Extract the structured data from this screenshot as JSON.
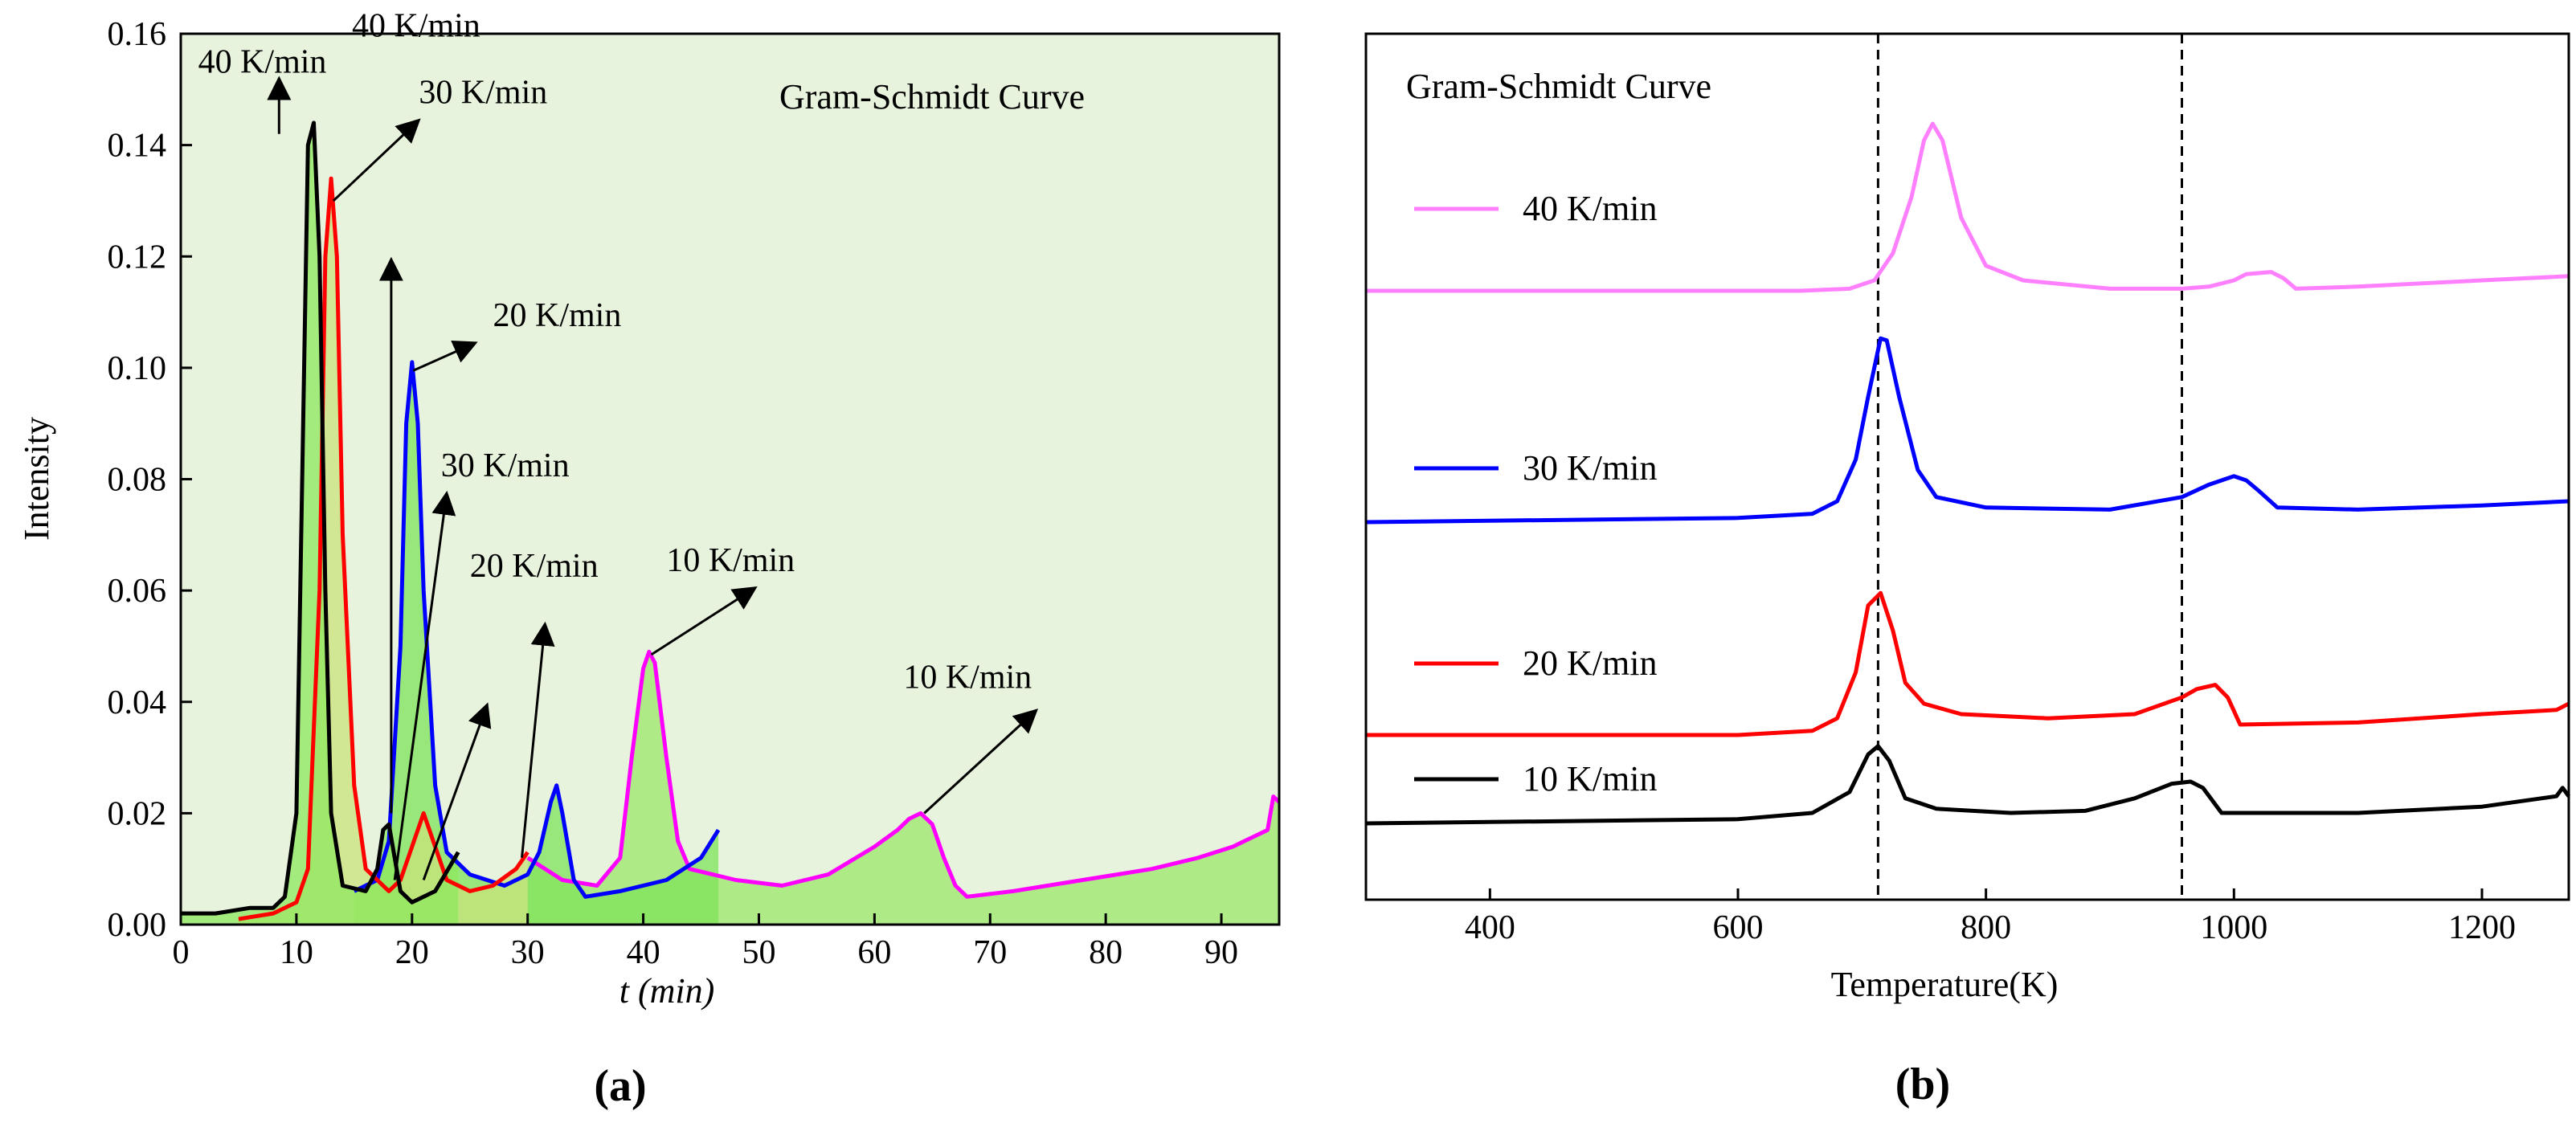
{
  "panel_a": {
    "caption": "(a)",
    "chart_data": {
      "type": "line",
      "title": "Gram-Schmidt Curve",
      "xlabel": "t (min)",
      "ylabel": "Intensity",
      "xlim": [
        0,
        95
      ],
      "ylim": [
        0,
        0.16
      ],
      "xticks": [
        0,
        10,
        20,
        30,
        40,
        50,
        60,
        70,
        80,
        90
      ],
      "yticks": [
        "0.00",
        "0.02",
        "0.04",
        "0.06",
        "0.08",
        "0.10",
        "0.12",
        "0.14",
        "0.16"
      ],
      "grid": false,
      "background": "#e8f3de",
      "series": [
        {
          "name": "10 K/min",
          "color": "#ff00ff",
          "x": [
            30,
            33,
            36,
            38,
            39,
            40,
            40.5,
            41,
            42,
            43,
            44,
            46,
            48,
            52,
            56,
            60,
            62,
            63,
            64,
            65,
            66,
            67,
            68,
            72,
            78,
            84,
            88,
            91,
            93,
            94,
            94.5,
            95
          ],
          "y": [
            0.012,
            0.008,
            0.007,
            0.012,
            0.03,
            0.046,
            0.049,
            0.047,
            0.03,
            0.015,
            0.01,
            0.009,
            0.008,
            0.007,
            0.009,
            0.014,
            0.017,
            0.019,
            0.02,
            0.018,
            0.012,
            0.007,
            0.005,
            0.006,
            0.008,
            0.01,
            0.012,
            0.014,
            0.016,
            0.017,
            0.023,
            0.022
          ]
        },
        {
          "name": "20 K/min",
          "color": "#0000ff",
          "x": [
            15,
            17,
            18,
            19,
            19.5,
            20,
            20.5,
            21,
            22,
            23,
            25,
            28,
            30,
            31,
            32,
            32.5,
            33,
            34,
            35,
            38,
            42,
            45,
            46.5
          ],
          "y": [
            0.006,
            0.008,
            0.015,
            0.05,
            0.09,
            0.101,
            0.09,
            0.06,
            0.025,
            0.013,
            0.009,
            0.007,
            0.009,
            0.013,
            0.022,
            0.025,
            0.02,
            0.008,
            0.005,
            0.006,
            0.008,
            0.012,
            0.017
          ]
        },
        {
          "name": "30 K/min",
          "color": "#ff0000",
          "x": [
            5,
            8,
            10,
            11,
            12,
            12.5,
            13,
            13.5,
            14,
            15,
            16,
            18,
            19,
            20,
            21,
            22,
            23,
            25,
            27,
            29,
            30
          ],
          "y": [
            0.001,
            0.002,
            0.004,
            0.01,
            0.06,
            0.12,
            0.134,
            0.12,
            0.07,
            0.025,
            0.01,
            0.006,
            0.008,
            0.014,
            0.02,
            0.014,
            0.008,
            0.006,
            0.007,
            0.01,
            0.013
          ]
        },
        {
          "name": "40 K/min",
          "color": "#000000",
          "x": [
            0,
            3,
            6,
            8,
            9,
            10,
            10.5,
            11,
            11.5,
            12,
            12.5,
            13,
            14,
            16,
            17,
            17.5,
            18,
            18.5,
            19,
            20,
            22,
            24
          ],
          "y": [
            0.002,
            0.002,
            0.003,
            0.003,
            0.005,
            0.02,
            0.08,
            0.14,
            0.144,
            0.12,
            0.06,
            0.02,
            0.007,
            0.006,
            0.01,
            0.017,
            0.018,
            0.012,
            0.006,
            0.004,
            0.006,
            0.013
          ]
        }
      ],
      "annotations": [
        {
          "text": "40 K/min",
          "x": 1.5,
          "y": 0.153
        },
        {
          "text": "30 K/min",
          "x": 20.6,
          "y": 0.1475
        },
        {
          "text": "40 K/min",
          "x": 14.8,
          "y": 0.1595
        },
        {
          "text": "20 K/min",
          "x": 27,
          "y": 0.1075
        },
        {
          "text": "30 K/min",
          "x": 22.5,
          "y": 0.0805
        },
        {
          "text": "20 K/min",
          "x": 25,
          "y": 0.0625
        },
        {
          "text": "10 K/min",
          "x": 42,
          "y": 0.0635
        },
        {
          "text": "10 K/min",
          "x": 62.5,
          "y": 0.0425
        }
      ]
    }
  },
  "panel_b": {
    "caption": "(b)",
    "chart_data": {
      "type": "line",
      "title": "Gram-Schmidt Curve",
      "xlabel": "Temperature(K)",
      "ylabel": "",
      "xlim": [
        300,
        1270
      ],
      "xticks": [
        400,
        600,
        800,
        1000,
        1200
      ],
      "grid": false,
      "reference_lines_x": [
        713,
        958
      ],
      "series": [
        {
          "name": "40 K/min",
          "color": "#ff80ff",
          "offset": 3.0,
          "x": [
            300,
            650,
            690,
            710,
            725,
            740,
            750,
            757,
            765,
            780,
            800,
            830,
            900,
            958,
            980,
            1000,
            1010,
            1030,
            1040,
            1050,
            1100,
            1200,
            1270
          ],
          "y": [
            0.0,
            0.0,
            0.01,
            0.05,
            0.18,
            0.45,
            0.72,
            0.8,
            0.72,
            0.35,
            0.12,
            0.05,
            0.01,
            0.01,
            0.02,
            0.05,
            0.08,
            0.09,
            0.06,
            0.01,
            0.02,
            0.05,
            0.07
          ]
        },
        {
          "name": "30 K/min",
          "color": "#0000ff",
          "offset": 2.0,
          "x": [
            300,
            600,
            660,
            680,
            695,
            705,
            715,
            720,
            730,
            745,
            760,
            800,
            900,
            958,
            980,
            1000,
            1010,
            1020,
            1035,
            1100,
            1200,
            1270
          ],
          "y": [
            0.0,
            0.02,
            0.04,
            0.1,
            0.3,
            0.6,
            0.88,
            0.87,
            0.6,
            0.25,
            0.12,
            0.07,
            0.06,
            0.12,
            0.18,
            0.22,
            0.2,
            0.15,
            0.07,
            0.06,
            0.08,
            0.1
          ]
        },
        {
          "name": "20 K/min",
          "color": "#ff0000",
          "offset": 1.0,
          "x": [
            300,
            600,
            660,
            680,
            695,
            705,
            715,
            725,
            735,
            750,
            780,
            850,
            920,
            958,
            970,
            985,
            995,
            1005,
            1100,
            1200,
            1260,
            1270
          ],
          "y": [
            0.0,
            0.0,
            0.02,
            0.08,
            0.3,
            0.62,
            0.68,
            0.5,
            0.25,
            0.15,
            0.1,
            0.08,
            0.1,
            0.18,
            0.22,
            0.24,
            0.18,
            0.05,
            0.06,
            0.1,
            0.12,
            0.15
          ]
        },
        {
          "name": "10 K/min",
          "color": "#000000",
          "offset": 0.0,
          "x": [
            300,
            600,
            660,
            690,
            705,
            713,
            722,
            735,
            760,
            820,
            880,
            920,
            950,
            965,
            975,
            985,
            990,
            1000,
            1100,
            1200,
            1260,
            1265,
            1270
          ],
          "y": [
            0.0,
            0.02,
            0.05,
            0.15,
            0.33,
            0.37,
            0.3,
            0.12,
            0.07,
            0.05,
            0.06,
            0.12,
            0.19,
            0.2,
            0.17,
            0.09,
            0.05,
            0.05,
            0.05,
            0.08,
            0.13,
            0.17,
            0.13
          ]
        }
      ]
    }
  }
}
